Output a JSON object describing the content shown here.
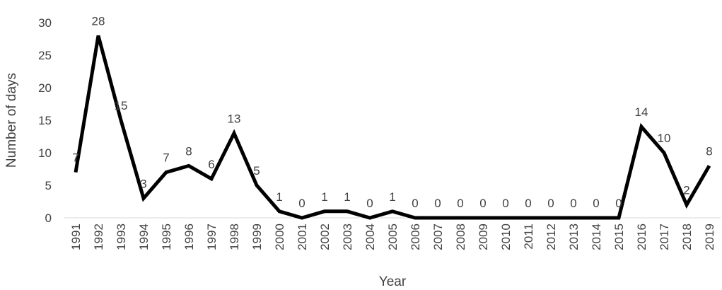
{
  "chart_data": {
    "type": "line",
    "title": "",
    "xlabel": "Year",
    "ylabel": "Number of days",
    "ylim": [
      0,
      30
    ],
    "yticks": [
      0,
      5,
      10,
      15,
      20,
      25,
      30
    ],
    "grid": false,
    "legend": "none",
    "line_color": "#000000",
    "categories": [
      "1991",
      "1992",
      "1993",
      "1994",
      "1995",
      "1996",
      "1997",
      "1998",
      "1999",
      "2000",
      "2001",
      "2002",
      "2003",
      "2004",
      "2005",
      "2006",
      "2007",
      "2008",
      "2009",
      "2010",
      "2011",
      "2012",
      "2013",
      "2014",
      "2015",
      "2016",
      "2017",
      "2018",
      "2019"
    ],
    "series": [
      {
        "values": [
          7,
          28,
          15,
          3,
          7,
          8,
          6,
          13,
          5,
          1,
          0,
          1,
          1,
          0,
          1,
          0,
          0,
          0,
          0,
          0,
          0,
          0,
          0,
          0,
          0,
          14,
          10,
          2,
          8
        ]
      }
    ]
  }
}
